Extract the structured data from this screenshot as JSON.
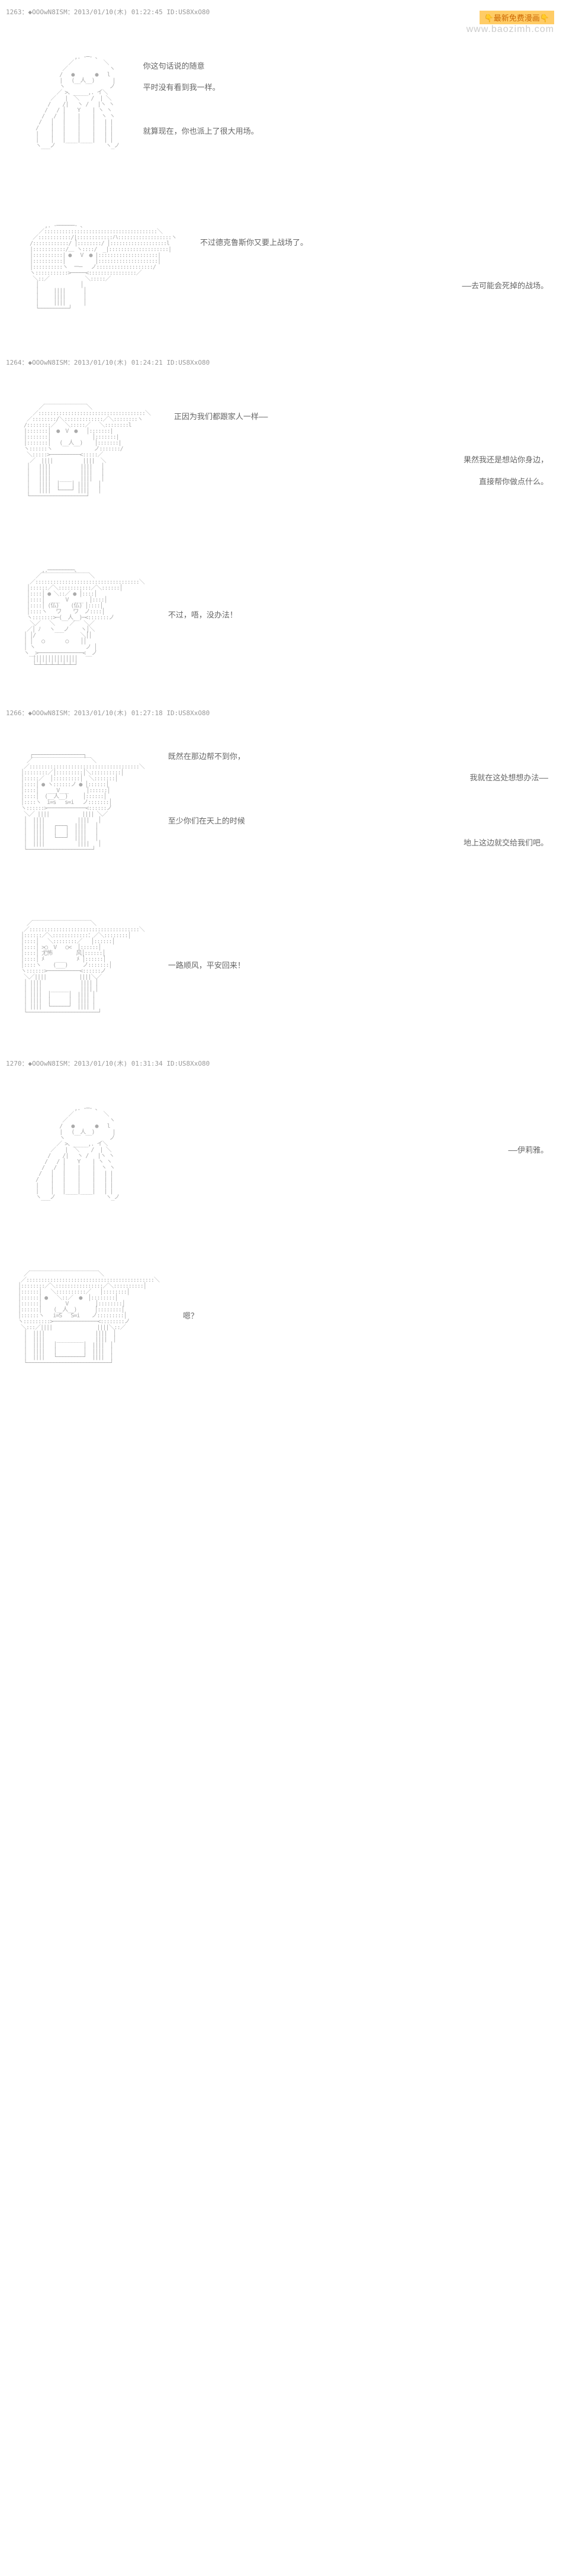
{
  "watermark": {
    "top": "👇最新免费漫画👇",
    "bottom": "www.baozimh.com"
  },
  "posts": [
    {
      "header": "1263：◆OOOwN8ISM：2013/01/10(木) 01:22:45 ID:US8XxO80",
      "panels": [
        {
          "art_key": "bald_man",
          "lines": [
            "你这句话说的随意",
            "平时没有看到我一样。",
            "",
            "就算现在，你也派上了很大用场。"
          ]
        },
        {
          "art_key": "girl_side",
          "lines": [
            "不过德克鲁斯你又要上战场了。",
            "",
            "——去可能会死掉的战场。"
          ]
        }
      ]
    },
    {
      "header": "1264：◆OOOwN8ISM：2013/01/10(木) 01:24:21 ID:US8XxO80",
      "panels": [
        {
          "art_key": "girl_front",
          "lines": [
            "正因为我们都跟家人一样——",
            "",
            "果然我还是想站你身边，",
            "直接帮你做点什么。"
          ]
        },
        {
          "art_key": "girl_chibi",
          "lines": [
            "不过，唔，没办法！"
          ]
        }
      ]
    },
    {
      "header": "1266：◆OOOwN8ISM：2013/01/10(木) 01:27:18 ID:US8XxO80",
      "panels": [
        {
          "art_key": "girl_hat",
          "lines": [
            "既然在那边帮不到你，",
            "我就在这处想想办法——",
            "",
            "至少你们在天上的时候",
            "地上这边就交给我们吧。"
          ]
        },
        {
          "art_key": "girl_close",
          "lines": [
            "一路顺风，平安回来！"
          ]
        }
      ]
    },
    {
      "header": "1270：◆OOOwN8ISM：2013/01/10(木) 01:31:34 ID:US8XxO80",
      "panels": [
        {
          "art_key": "bald_man",
          "lines": [
            "——伊莉雅。"
          ]
        },
        {
          "art_key": "girl_wide",
          "lines": [
            "嗯？"
          ]
        }
      ]
    }
  ],
  "ascii": {
    "bald_man": "                   ,. -─- 、\n                 ／          ＼\n               ／              ヽ\n              /   ●       ●   l\n              |   (__人__)      |\n              ヽ               ノ\n             ／ >、_____,. イ＼\n           ／   |  ＼    /  | ＼\n          /    /|   ヽ /   |ヽ ヽ\n         /   / │    Y    | ヽ ヽ\n        /   /  │    |    |  ヽ ヽ\n       /   │   |    |    |   | |\n      /    │   |    |    |   | |\n      |    │   |    |    |   | |\n      |    │   |____|____|   | |\n      ヽ___ノ                 ヽ_ノ",
    "girl_side": "         ,. -──────- 、\n       ／::::::::::::::::::::::::::::::::::::::＼\n     ／:::::::::::/|::::::::::::ハ::::::::::::::::::ヽ\n    /::::::::::::/ │::::::::/ │:::::::::::::::::::l\n    |:::::::::::/＿ ヽ::::/  _|::::::::::::::::::::|\n    |::::::::::| ●   V  ● |::::::::::::::::::::|\n    |::::::::::|          |::::::::::::::::::::|\n    |::::::::::ヽ  ー─   ノ:::::::::::::::::::/\n    ヽ:::::::::::>─────<::::::::::::::::／\n     ＼::／            ＼:::::／\n      │              │\n      │     ||||      │\n      │     ||||      │\n      │     ||||      │\n      └──────────┘",
    "girl_front": "       ／￣￣￣￣￣￣￣￣＼\n     ／::::::::::::::::::::::::::::::::::::＼\n   ／::::::::/＼:::::::::::::／＼::::::::ヽ\n  /::::::::／   ＼:::::／   ＼::::::::l\n  |:::::::│  ●  V  ●   │:::::::|\n  |:::::::│              │:::::::|\n  |:::::::│   (__人__)    │:::::::|\n  ヽ::::::ヽ              ノ:::::::/\n   ＼:::::>──────────<:::::／\n    ／  ||||          ||||  ＼\n   │   ||||          ||||   │\n   │   ||||          ||||   │\n   │   ||||   ____   ||||   │\n   │   ||||  │    │ ||||   │\n   │   ||||  └────┘ ||||   │\n   └───────────────────┘",
    "girl_chibi": "        ,.─────────、\n      ／￣￣￣￣￣￣￣￣￣＼\n    ／:::::::::::::::::::::::::::::::::::＼\n   │::::::／＼:::::::::::／＼::::::│\n   │::::│ ● ＼::／ ● │::::│\n   │::::│  ___  V  ___  │::::│\n   │::::│ (仏)    (仏) │::::│\n   │::::ヽ   ワ    ワ  ノ::::│\n   ヽ:::::::>─(__人__)─<:::::::ノ\n    ＼／   ＼     ／   ＼／\n   ／│ ﾉ   ヽ___ノ    ヽ│＼\n  │ │/               ＼││\n  │ │   ○       ○    ││\n  │ ヽ                 ノ │\n  ヽ__>───────────────<__ノ\n     │││││││││││││││\n     └─┴─┴─┴─┴─┴─┴─┘",
    "girl_hat": "    ┌─────────────────┐\n   ／￣￣￣￣￣￣￣￣￣￣￣＼\n  ／:::::::::::::::::::::::::::::::::::::＼\n │::::::::／│:::::::::│＼::::::::::│\n │:::::／  │:::::::::│  ＼:::::::│\n │::::│ ● ヽ::::::ノ ● │::::::│\n │::::│   ___V___      │::::::│\n │::::│  (__人__)     │::::::│\n │::::ヽ  i=s   s=i   ノ:::::::│\n ヽ::::::>─────────────<::::::ノ\n  ＼／ ||||           |||| ＼／\n  │  ||||           ||||   │\n  │  ||||   ┌───┐  ||||   │\n  │  ||||   │   │  ||||   │\n  │  ||||   └───┘  ||||   │\n  │  ||||           ||||   │\n  └──────────────────────┘",
    "girl_close": "   ／￣￣￣￣￣￣￣￣￣￣￣＼\n  ／:::::::::::::::::::::::::::::::::::::＼\n │::::::／＼::::::::::::：／＼::::::::│\n │::::│   ＼::::::::／   │::::::│\n │::::│ >○  V   ○<  │::::::│\n │::::│ 尤怖        风│::::::│\n │::::│ ﾒ    ___    ﾒ │::::::│\n │::::ヽ    (___)     ノ:::::::│\n ヽ::::::>───────────<::::::ノ\n  ＼／||||           ||||＼／\n  │ ||||             |||| │\n  │ ||||   ______    |||| │\n  │ ||||  │      │  |||| │\n  │ ||||  │      │  |||| │\n  │ ||||  └──────┘  |||| │\n  └────────────────────────┘",
    "girl_wide": "  ／￣￣￣￣￣￣￣￣￣￣￣￣￣＼\n ／:::::::::::::::::::::::::::::::::::::::::::＼\n│::::::::／＼::::::::::::::::／＼::::::::::│\n│::::::│   ＼::::::::::／   │::::::::│\n│::::::│ ●   ＼::／  ●  │::::::::│\n│::::::│        V         │::::::::│\n│::::::│    (__人__)      │::::::::│\n│::::::ヽ   i=S   S=i    ノ:::::::::│\nヽ:::::::::>───────────────<::::::::ノ\n ＼:::／||||               ||||＼::／\n  │  ||||                 ||||  │\n  │  ||||    _________    ||||  │\n  │  ||||   │         │  ||||  │\n  │  ||||   │         │  ||||  │\n  │  ||||   └─────────┘  ||||  │\n  └────────────────────────────┘"
  }
}
